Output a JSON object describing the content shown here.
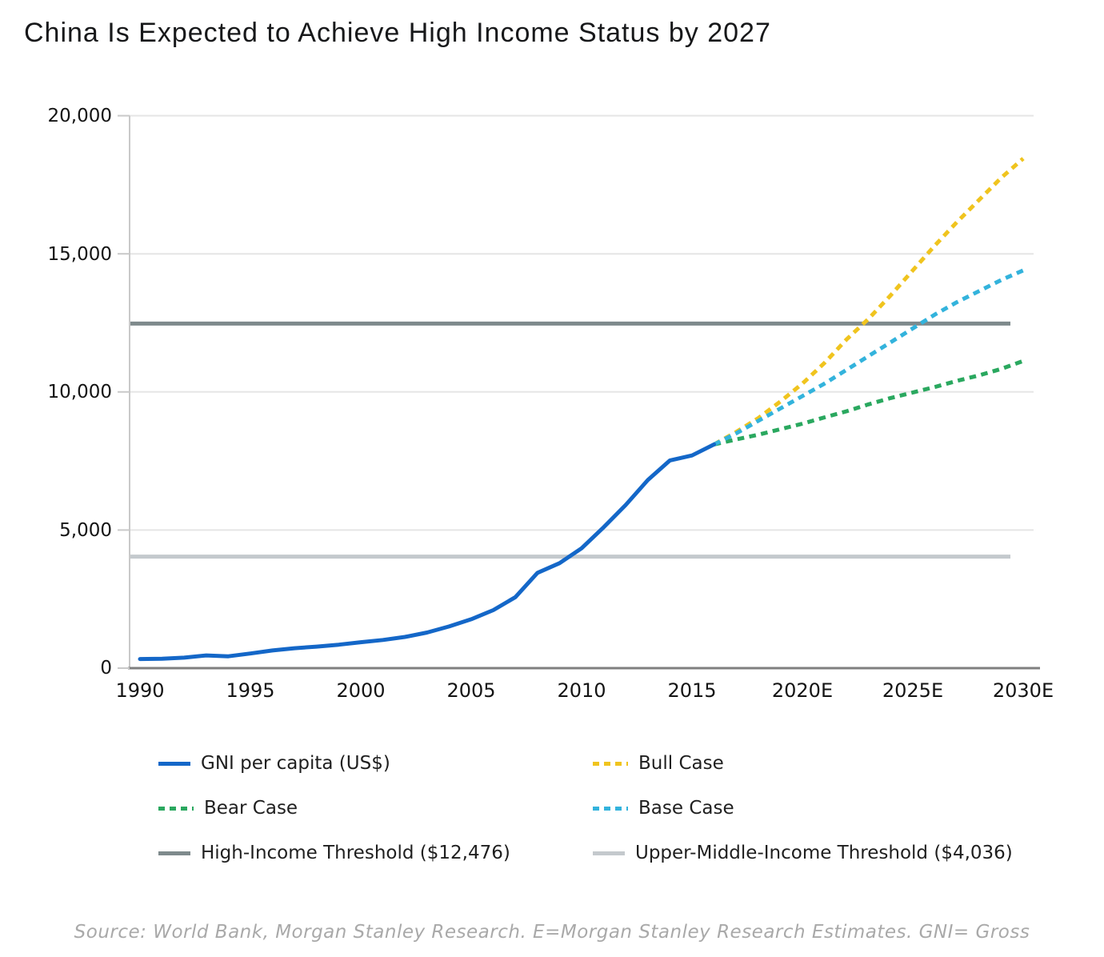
{
  "title": "China Is Expected to Achieve High Income Status by 2027",
  "source_note": "Source: World Bank, Morgan Stanley Research. E=Morgan Stanley Research Estimates. GNI= Gross",
  "colors": {
    "gni": "#1467C8",
    "bull": "#F0C41E",
    "bear": "#2AA85F",
    "base": "#33B3DC",
    "high_threshold": "#7E8A8C",
    "upper_middle_threshold": "#C4C9CD",
    "grid": "#E5E5E5",
    "axis_bottom": "#7F7F7F",
    "axis_left": "#C9C9C9",
    "tick": "#C9C9C9"
  },
  "chart_data": {
    "type": "line",
    "title": "China Is Expected to Achieve High Income Status by 2027",
    "xlabel": "",
    "ylabel": "GNI per capita (US$)",
    "xlim": [
      1990,
      2030
    ],
    "ylim": [
      0,
      20000
    ],
    "grid": "horizontal",
    "legend_position": "bottom",
    "ytick_values": [
      0,
      5000,
      10000,
      15000,
      20000
    ],
    "ytick_labels_top_down": [
      "20,000",
      "15,000",
      "10,000",
      "5,000",
      "0"
    ],
    "xtick_values": [
      1990,
      1995,
      2000,
      2005,
      2010,
      2015,
      2020,
      2025,
      2030
    ],
    "xtick_labels": [
      "1990",
      "1995",
      "2000",
      "2005",
      "2010",
      "2015",
      "2020E",
      "2025E",
      "2030E"
    ],
    "series": [
      {
        "name": "GNI per capita (US$)",
        "style": "solid",
        "color_key": "gni",
        "x": [
          1990,
          1991,
          1992,
          1993,
          1994,
          1995,
          1996,
          1997,
          1998,
          1999,
          2000,
          2001,
          2002,
          2003,
          2004,
          2005,
          2006,
          2007,
          2008,
          2009,
          2010,
          2011,
          2012,
          2013,
          2014,
          2015,
          2016
        ],
        "values": [
          330,
          340,
          380,
          460,
          430,
          530,
          640,
          720,
          780,
          850,
          940,
          1020,
          1130,
          1290,
          1510,
          1770,
          2100,
          2570,
          3450,
          3800,
          4340,
          5100,
          5910,
          6810,
          7520,
          7700,
          8100
        ]
      },
      {
        "name": "Bull Case",
        "style": "dashed",
        "color_key": "bull",
        "x": [
          2016,
          2017,
          2018,
          2019,
          2020,
          2021,
          2022,
          2023,
          2024,
          2025,
          2026,
          2027,
          2028,
          2029,
          2030
        ],
        "values": [
          8100,
          8550,
          9050,
          9650,
          10300,
          11050,
          11900,
          12650,
          13500,
          14400,
          15300,
          16150,
          16950,
          17750,
          18450
        ]
      },
      {
        "name": "Bear Case",
        "style": "dashed",
        "color_key": "bear",
        "x": [
          2016,
          2017,
          2018,
          2019,
          2020,
          2021,
          2022,
          2023,
          2024,
          2025,
          2026,
          2027,
          2028,
          2029,
          2030
        ],
        "values": [
          8100,
          8280,
          8450,
          8650,
          8850,
          9080,
          9300,
          9550,
          9780,
          9980,
          10180,
          10400,
          10600,
          10830,
          11120
        ]
      },
      {
        "name": "Base Case",
        "style": "dashed",
        "color_key": "base",
        "x": [
          2016,
          2017,
          2018,
          2019,
          2020,
          2021,
          2022,
          2023,
          2024,
          2025,
          2026,
          2027,
          2028,
          2029,
          2030
        ],
        "values": [
          8100,
          8500,
          8950,
          9400,
          9850,
          10300,
          10800,
          11300,
          11800,
          12300,
          12800,
          13250,
          13650,
          14050,
          14400
        ]
      }
    ],
    "thresholds": [
      {
        "name": "High-Income Threshold ($12,476)",
        "value": 12476,
        "color_key": "high_threshold"
      },
      {
        "name": "Upper-Middle-Income Threshold ($4,036)",
        "value": 4036,
        "color_key": "upper_middle_threshold"
      }
    ]
  },
  "legend": {
    "columns": [
      {
        "items": [
          {
            "label": "GNI per capita (US$)",
            "swatch": "solid",
            "color_key": "gni"
          },
          {
            "label": "Bear Case",
            "swatch": "dashed",
            "color_key": "bear"
          },
          {
            "label": "High-Income Threshold ($12,476)",
            "swatch": "solid",
            "color_key": "high_threshold"
          }
        ]
      },
      {
        "items": [
          {
            "label": "Bull Case",
            "swatch": "dashed",
            "color_key": "bull"
          },
          {
            "label": "Base Case",
            "swatch": "dashed",
            "color_key": "base"
          },
          {
            "label": "Upper-Middle-Income Threshold ($4,036)",
            "swatch": "solid",
            "color_key": "upper_middle_threshold"
          }
        ]
      }
    ]
  }
}
